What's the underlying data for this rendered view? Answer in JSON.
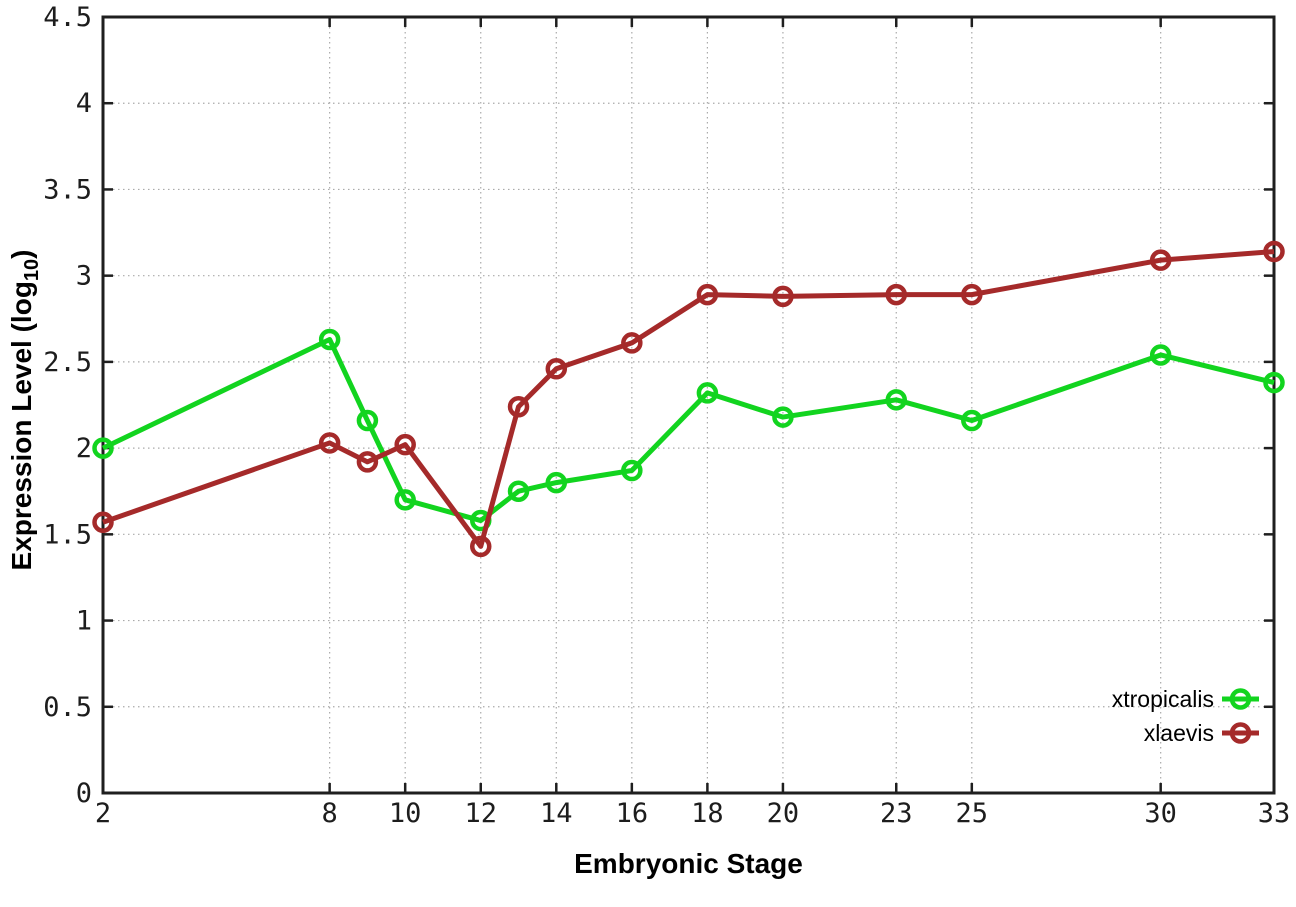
{
  "figure": {
    "background_color": "#ffffff",
    "border_color": "#1f1f1f",
    "grid_color": "#aaaaaa"
  },
  "chart_data": {
    "type": "line",
    "title": "",
    "xlabel": "Embryonic Stage",
    "ylabel": "Expression Level (log10)",
    "ylabel_parts": {
      "prefix": "Expression Level (log",
      "subscript": "10",
      "suffix": ")"
    },
    "xlim": [
      2,
      33
    ],
    "ylim": [
      0,
      4.5
    ],
    "x_ticks": [
      2,
      8,
      10,
      12,
      14,
      16,
      18,
      20,
      23,
      25,
      30,
      33
    ],
    "y_ticks": [
      0,
      0.5,
      1,
      1.5,
      2,
      2.5,
      3,
      3.5,
      4,
      4.5
    ],
    "grid": "dotted",
    "legend_position": "bottom-right",
    "x": [
      2,
      8,
      9,
      10,
      12,
      13,
      14,
      16,
      18,
      20,
      23,
      25,
      30,
      33
    ],
    "series": [
      {
        "name": "xtropicalis",
        "color": "#12d41f",
        "marker": "open-circle",
        "values": [
          2.0,
          2.63,
          2.16,
          1.7,
          1.58,
          1.75,
          1.8,
          1.87,
          2.32,
          2.18,
          2.28,
          2.16,
          2.54,
          2.38
        ]
      },
      {
        "name": "xlaevis",
        "color": "#a52a2a",
        "marker": "open-circle",
        "values": [
          1.57,
          2.03,
          1.92,
          2.02,
          1.43,
          2.24,
          2.46,
          2.61,
          2.89,
          2.88,
          2.89,
          2.89,
          3.09,
          3.14
        ]
      }
    ]
  }
}
